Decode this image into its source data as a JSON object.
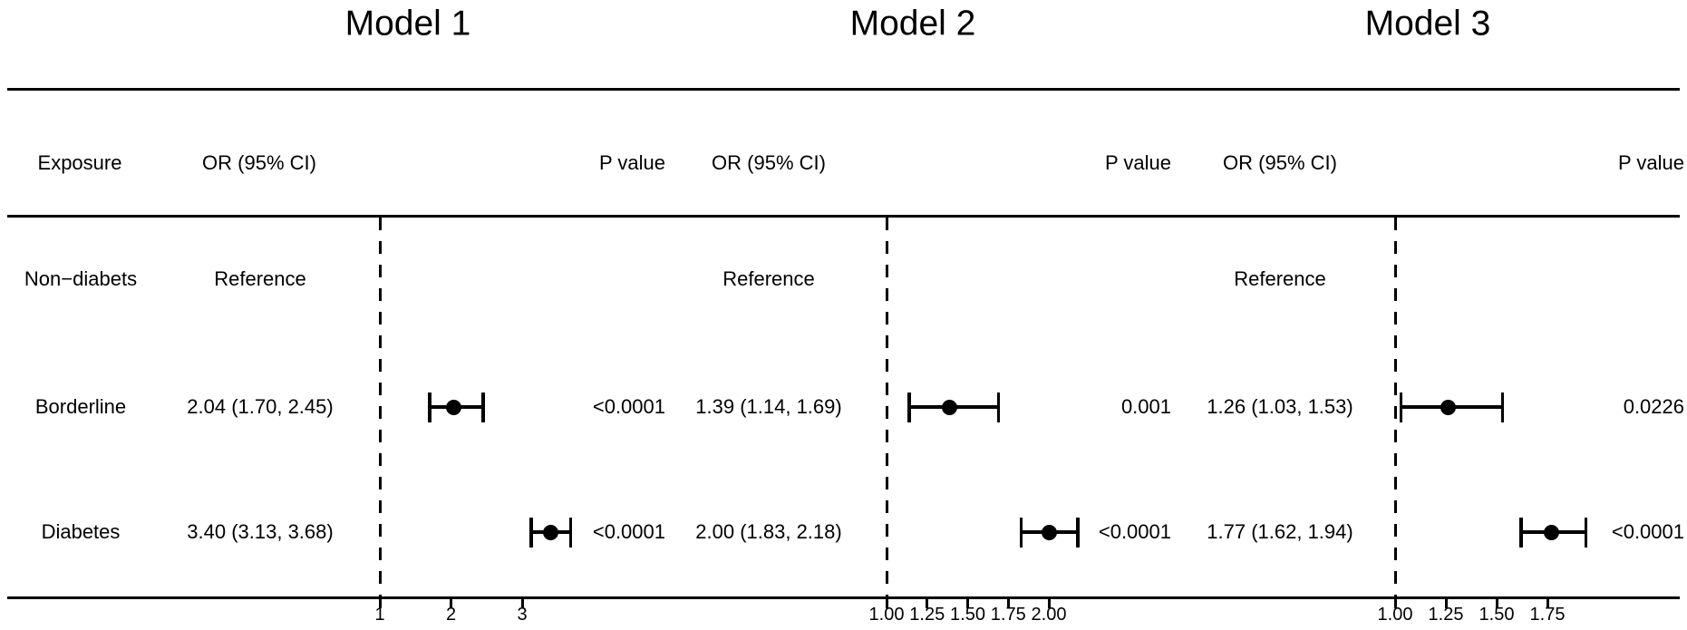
{
  "header": {
    "exposure": "Exposure",
    "or_ci": "OR (95% CI)",
    "p_value": "P value"
  },
  "chart_data": {
    "type": "forest",
    "title": "",
    "xlabel": "",
    "exposures": [
      "Non−diabets",
      "Borderline",
      "Diabetes"
    ],
    "colors": {
      "foreground": "#000000",
      "background": "#ffffff"
    },
    "models": [
      {
        "title": "Model 1",
        "x_axis": {
          "ticks": [
            1,
            2,
            3
          ],
          "tick_labels": [
            "1",
            "2",
            "3"
          ],
          "ref_line": 1
        },
        "rows": [
          {
            "exposure": "Non−diabets",
            "or_ci": "Reference",
            "p_value": "",
            "estimate": null,
            "ci_low": null,
            "ci_high": null
          },
          {
            "exposure": "Borderline",
            "or_ci": "2.04 (1.70, 2.45)",
            "p_value": "<0.0001",
            "estimate": 2.04,
            "ci_low": 1.7,
            "ci_high": 2.45
          },
          {
            "exposure": "Diabetes",
            "or_ci": "3.40 (3.13, 3.68)",
            "p_value": "<0.0001",
            "estimate": 3.4,
            "ci_low": 3.13,
            "ci_high": 3.68
          }
        ]
      },
      {
        "title": "Model 2",
        "x_axis": {
          "ticks": [
            1.0,
            1.25,
            1.5,
            1.75,
            2.0
          ],
          "tick_labels": [
            "1.00",
            "1.25",
            "1.50",
            "1.75",
            "2.00"
          ],
          "ref_line": 1
        },
        "rows": [
          {
            "exposure": "Non−diabets",
            "or_ci": "Reference",
            "p_value": "",
            "estimate": null,
            "ci_low": null,
            "ci_high": null
          },
          {
            "exposure": "Borderline",
            "or_ci": "1.39 (1.14, 1.69)",
            "p_value": "0.001",
            "estimate": 1.39,
            "ci_low": 1.14,
            "ci_high": 1.69
          },
          {
            "exposure": "Diabetes",
            "or_ci": "2.00 (1.83, 2.18)",
            "p_value": "<0.0001",
            "estimate": 2.0,
            "ci_low": 1.83,
            "ci_high": 2.18
          }
        ]
      },
      {
        "title": "Model 3",
        "x_axis": {
          "ticks": [
            1.0,
            1.25,
            1.5,
            1.75
          ],
          "tick_labels": [
            "1.00",
            "1.25",
            "1.50",
            "1.75"
          ],
          "ref_line": 1
        },
        "rows": [
          {
            "exposure": "Non−diabets",
            "or_ci": "Reference",
            "p_value": "",
            "estimate": null,
            "ci_low": null,
            "ci_high": null
          },
          {
            "exposure": "Borderline",
            "or_ci": "1.26 (1.03, 1.53)",
            "p_value": "0.0226",
            "estimate": 1.26,
            "ci_low": 1.03,
            "ci_high": 1.53
          },
          {
            "exposure": "Diabetes",
            "or_ci": "1.77 (1.62, 1.94)",
            "p_value": "<0.0001",
            "estimate": 1.77,
            "ci_low": 1.62,
            "ci_high": 1.94
          }
        ]
      }
    ]
  }
}
